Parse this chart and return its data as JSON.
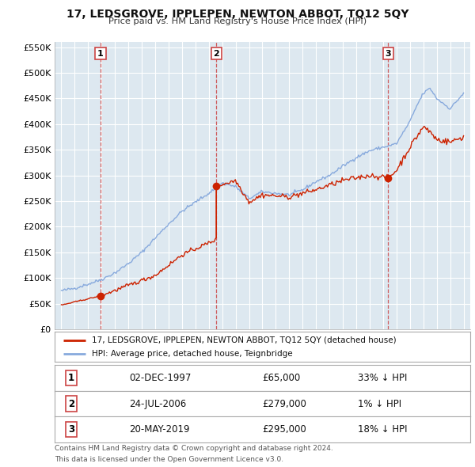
{
  "title": "17, LEDSGROVE, IPPLEPEN, NEWTON ABBOT, TQ12 5QY",
  "subtitle": "Price paid vs. HM Land Registry's House Price Index (HPI)",
  "legend_line1": "17, LEDSGROVE, IPPLEPEN, NEWTON ABBOT, TQ12 5QY (detached house)",
  "legend_line2": "HPI: Average price, detached house, Teignbridge",
  "transactions": [
    {
      "num": 1,
      "date": "02-DEC-1997",
      "price": 65000,
      "pct": "33%",
      "dir": "↓",
      "x_year": 1997.92
    },
    {
      "num": 2,
      "date": "24-JUL-2006",
      "price": 279000,
      "pct": "1%",
      "dir": "↓",
      "x_year": 2006.56
    },
    {
      "num": 3,
      "date": "20-MAY-2019",
      "price": 295000,
      "pct": "18%",
      "dir": "↓",
      "x_year": 2019.38
    }
  ],
  "paid_color": "#cc2200",
  "hpi_color": "#88aadd",
  "vline_color": "#cc4444",
  "plot_bg_color": "#dde8f0",
  "background_color": "#ffffff",
  "grid_color": "#ffffff",
  "ylim": [
    0,
    560000
  ],
  "yticks": [
    0,
    50000,
    100000,
    150000,
    200000,
    250000,
    300000,
    350000,
    400000,
    450000,
    500000,
    550000
  ],
  "xlim": [
    1994.5,
    2025.5
  ],
  "xticks": [
    1995,
    1996,
    1997,
    1998,
    1999,
    2000,
    2001,
    2002,
    2003,
    2004,
    2005,
    2006,
    2007,
    2008,
    2009,
    2010,
    2011,
    2012,
    2013,
    2014,
    2015,
    2016,
    2017,
    2018,
    2019,
    2020,
    2021,
    2022,
    2023,
    2024,
    2025
  ],
  "footer1": "Contains HM Land Registry data © Crown copyright and database right 2024.",
  "footer2": "This data is licensed under the Open Government Licence v3.0."
}
